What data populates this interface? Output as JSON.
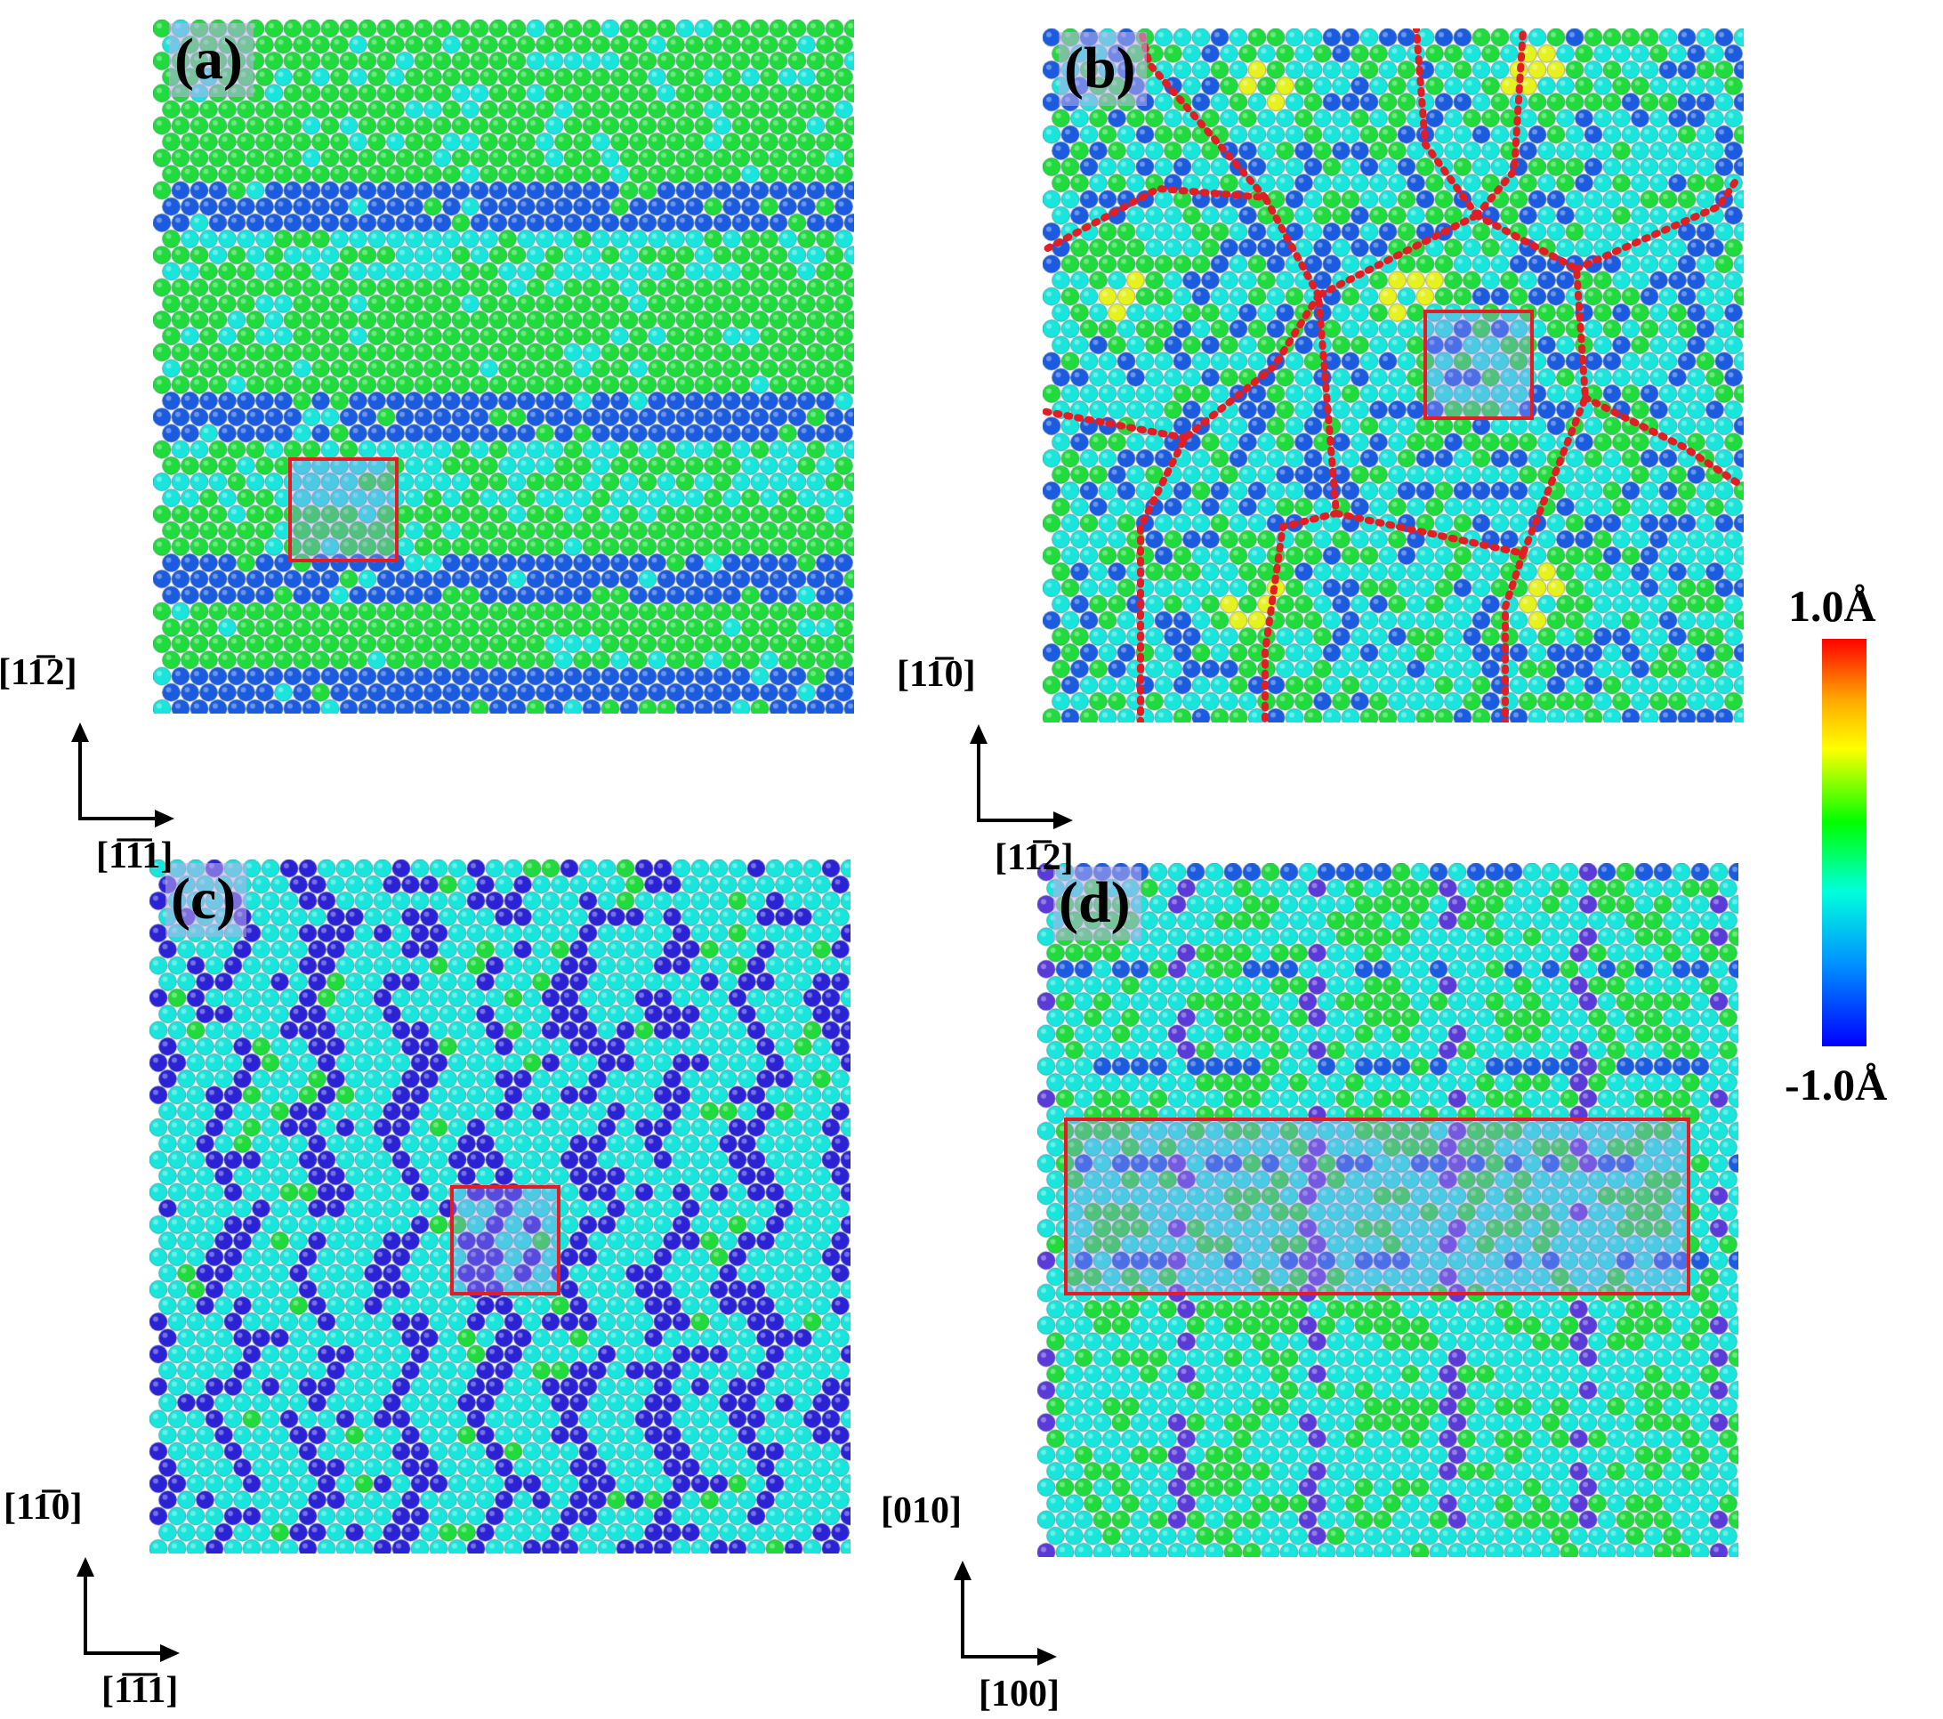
{
  "panels": [
    {
      "label": "(a)",
      "pattern": "stripes"
    },
    {
      "label": "(b)",
      "pattern": "hex"
    },
    {
      "label": "(c)",
      "pattern": "zigzag"
    },
    {
      "label": "(d)",
      "pattern": "grid"
    }
  ],
  "axes": [
    {
      "y": "[11̅2]",
      "x": "[1̅1̅1]"
    },
    {
      "y": "[11̅0]",
      "x": "[11̅2]"
    },
    {
      "y": "[11̅0]",
      "x": "[1̅1̅1]"
    },
    {
      "y": "[010]",
      "x": "[100]"
    }
  ],
  "colorbar": {
    "max_label": "1.0Å",
    "min_label": "-1.0Å",
    "colors": [
      "#ff0000",
      "#ffaa00",
      "#ffff00",
      "#00ff00",
      "#00ffdd",
      "#0090ff",
      "#0000ff"
    ]
  },
  "atom_colors": {
    "green": "#1fdc3c",
    "cyan": "#18e6dc",
    "blue": "#1a5be0",
    "deep_blue": "#2b22d6",
    "violet": "#5a3ad8",
    "yellow": "#e6f21e",
    "boundary_red": "#e21d24"
  }
}
